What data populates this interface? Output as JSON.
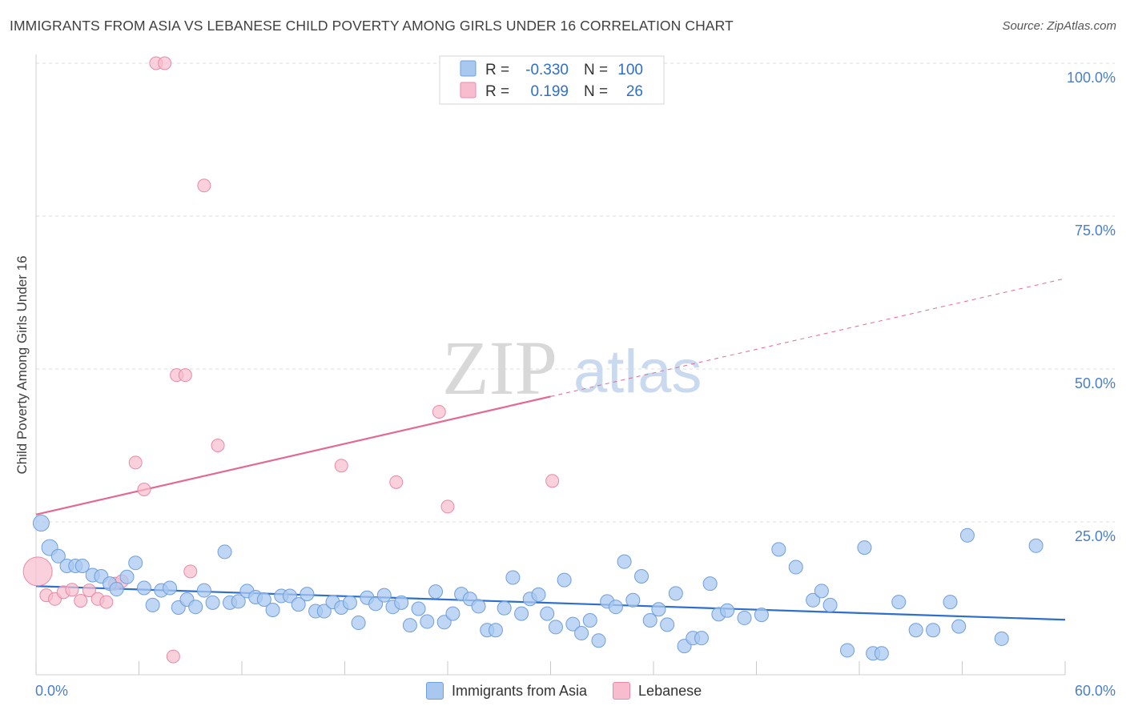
{
  "header": {
    "title": "IMMIGRANTS FROM ASIA VS LEBANESE CHILD POVERTY AMONG GIRLS UNDER 16 CORRELATION CHART",
    "source": "Source: ZipAtlas.com"
  },
  "watermark": {
    "zip": "ZIP",
    "atlas": "atlas"
  },
  "colors": {
    "asia_fill": "#a9c8f0",
    "asia_stroke": "#6f9fdc",
    "asia_line": "#2f6fcc",
    "lebanese_fill": "#f7bccd",
    "lebanese_stroke": "#e88aa6",
    "lebanese_line": "#e26a92",
    "tick_text": "#4a7ecb",
    "grid": "#dcdcdc"
  },
  "legend": {
    "rows": [
      {
        "r_label": "R =",
        "r_value": "-0.330",
        "n_label": "N =",
        "n_value": "100"
      },
      {
        "r_label": "R =",
        "r_value": "0.199",
        "n_label": "N =",
        "n_value": "26"
      }
    ]
  },
  "bottom_legend": [
    "Immigrants from Asia",
    "Lebanese"
  ],
  "chart_data": {
    "type": "scatter",
    "xlabel": "",
    "ylabel": "Child Poverty Among Girls Under 16",
    "xlim": [
      0,
      60
    ],
    "ylim": [
      0,
      105
    ],
    "x_tick_labels": [
      {
        "value": 0,
        "label": "0.0%"
      },
      {
        "value": 60,
        "label": "60.0%"
      }
    ],
    "y_tick_labels": [
      {
        "value": 100,
        "label": "100.0%"
      },
      {
        "value": 75,
        "label": "75.0%"
      },
      {
        "value": 50,
        "label": "50.0%"
      },
      {
        "value": 25,
        "label": "25.0%"
      }
    ],
    "series": [
      {
        "name": "Immigrants from Asia",
        "trend": {
          "x": [
            0,
            60
          ],
          "y": [
            14.5,
            9.0
          ],
          "dashed_from_x": null
        },
        "points": [
          [
            0.3,
            24.8
          ],
          [
            0.8,
            20.8
          ],
          [
            1.3,
            19.4
          ],
          [
            1.8,
            17.8
          ],
          [
            2.3,
            17.8
          ],
          [
            2.7,
            17.8
          ],
          [
            3.3,
            16.3
          ],
          [
            3.8,
            16.1
          ],
          [
            4.3,
            14.9
          ],
          [
            4.7,
            14.0
          ],
          [
            5.3,
            16.0
          ],
          [
            5.8,
            18.3
          ],
          [
            6.3,
            14.2
          ],
          [
            6.8,
            11.4
          ],
          [
            7.3,
            13.8
          ],
          [
            7.8,
            14.2
          ],
          [
            8.3,
            11.0
          ],
          [
            8.8,
            12.3
          ],
          [
            9.3,
            11.1
          ],
          [
            9.8,
            13.8
          ],
          [
            10.3,
            11.8
          ],
          [
            11.0,
            20.1
          ],
          [
            11.3,
            11.8
          ],
          [
            11.8,
            12.0
          ],
          [
            12.3,
            13.7
          ],
          [
            12.8,
            12.7
          ],
          [
            13.3,
            12.3
          ],
          [
            13.8,
            10.6
          ],
          [
            14.3,
            12.9
          ],
          [
            14.8,
            12.9
          ],
          [
            15.3,
            11.5
          ],
          [
            15.8,
            13.2
          ],
          [
            16.3,
            10.4
          ],
          [
            16.8,
            10.4
          ],
          [
            17.3,
            11.9
          ],
          [
            17.8,
            11.0
          ],
          [
            18.3,
            11.8
          ],
          [
            18.8,
            8.5
          ],
          [
            19.3,
            12.6
          ],
          [
            19.8,
            11.6
          ],
          [
            20.3,
            13.0
          ],
          [
            20.8,
            11.1
          ],
          [
            21.3,
            11.8
          ],
          [
            21.8,
            8.1
          ],
          [
            22.3,
            10.8
          ],
          [
            22.8,
            8.7
          ],
          [
            23.3,
            13.6
          ],
          [
            23.8,
            8.6
          ],
          [
            24.3,
            10.0
          ],
          [
            24.8,
            13.2
          ],
          [
            25.3,
            12.4
          ],
          [
            25.8,
            11.2
          ],
          [
            26.3,
            7.3
          ],
          [
            26.8,
            7.3
          ],
          [
            27.3,
            10.9
          ],
          [
            27.8,
            15.9
          ],
          [
            28.3,
            10.0
          ],
          [
            28.8,
            12.4
          ],
          [
            29.3,
            13.1
          ],
          [
            29.8,
            10.0
          ],
          [
            30.3,
            7.8
          ],
          [
            30.8,
            15.5
          ],
          [
            31.3,
            8.3
          ],
          [
            31.8,
            6.8
          ],
          [
            32.3,
            8.9
          ],
          [
            32.8,
            5.6
          ],
          [
            33.3,
            12.0
          ],
          [
            33.8,
            11.1
          ],
          [
            34.3,
            18.5
          ],
          [
            34.8,
            12.2
          ],
          [
            35.3,
            16.1
          ],
          [
            35.8,
            8.9
          ],
          [
            36.3,
            10.7
          ],
          [
            36.8,
            8.2
          ],
          [
            37.3,
            13.3
          ],
          [
            37.8,
            4.7
          ],
          [
            38.3,
            6.0
          ],
          [
            38.8,
            6.0
          ],
          [
            39.3,
            14.9
          ],
          [
            39.8,
            9.9
          ],
          [
            40.3,
            10.5
          ],
          [
            41.3,
            9.3
          ],
          [
            42.3,
            9.8
          ],
          [
            43.3,
            20.5
          ],
          [
            44.3,
            17.6
          ],
          [
            45.3,
            12.2
          ],
          [
            45.8,
            13.7
          ],
          [
            46.3,
            11.4
          ],
          [
            47.3,
            4.0
          ],
          [
            48.3,
            20.8
          ],
          [
            48.8,
            3.5
          ],
          [
            49.3,
            3.5
          ],
          [
            50.3,
            11.9
          ],
          [
            51.3,
            7.3
          ],
          [
            52.3,
            7.3
          ],
          [
            53.3,
            11.9
          ],
          [
            53.8,
            7.9
          ],
          [
            54.3,
            22.8
          ],
          [
            56.3,
            5.9
          ],
          [
            58.3,
            21.1
          ]
        ]
      },
      {
        "name": "Lebanese",
        "trend": {
          "x": [
            0,
            60
          ],
          "y": [
            26.2,
            64.8
          ],
          "dashed_from_x": 30
        },
        "points": [
          [
            0.1,
            16.9
          ],
          [
            0.6,
            13.0
          ],
          [
            1.1,
            12.4
          ],
          [
            1.6,
            13.5
          ],
          [
            2.1,
            13.9
          ],
          [
            2.6,
            12.1
          ],
          [
            3.1,
            13.8
          ],
          [
            3.6,
            12.4
          ],
          [
            4.1,
            11.9
          ],
          [
            4.6,
            14.9
          ],
          [
            5.0,
            15.3
          ],
          [
            5.8,
            34.7
          ],
          [
            6.3,
            30.3
          ],
          [
            7.0,
            100.0
          ],
          [
            7.5,
            100.0
          ],
          [
            8.2,
            49.0
          ],
          [
            8.7,
            49.0
          ],
          [
            8.0,
            3.0
          ],
          [
            9.0,
            16.9
          ],
          [
            9.8,
            80.0
          ],
          [
            10.6,
            37.5
          ],
          [
            17.8,
            34.2
          ],
          [
            21.0,
            31.5
          ],
          [
            23.5,
            43.0
          ],
          [
            24.0,
            27.5
          ],
          [
            30.1,
            31.7
          ]
        ]
      }
    ]
  }
}
